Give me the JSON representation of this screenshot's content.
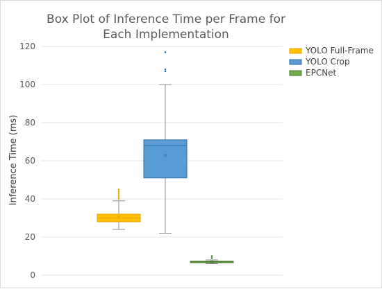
{
  "chart_data": {
    "type": "box",
    "title_lines": [
      "Box Plot of Inference Time per Frame for",
      "Each Implementation"
    ],
    "ylabel": "Inference Time (ms)",
    "xlabel": "",
    "ylim": [
      0,
      120
    ],
    "yticks": [
      "0",
      "20",
      "40",
      "60",
      "80",
      "100",
      "120"
    ],
    "grid": true,
    "legend_position": "top-right",
    "series": [
      {
        "name": "YOLO Full-Frame",
        "fill": "#ffc000",
        "stroke": "#e6a800",
        "min": 24,
        "q1": 28,
        "median": 30,
        "q3": 32,
        "max": 39,
        "mean": 30.5,
        "outliers": [
          40,
          41,
          42,
          43,
          44,
          45
        ]
      },
      {
        "name": "YOLO Crop",
        "fill": "#5b9bd5",
        "stroke": "#2e6da4",
        "min": 22,
        "q1": 51,
        "median": 68,
        "q3": 71,
        "max": 100,
        "mean": 63,
        "outliers": [
          107,
          108,
          117
        ]
      },
      {
        "name": "EPCNet",
        "fill": "#70ad47",
        "stroke": "#4b7a2f",
        "min": 6,
        "q1": 6.5,
        "median": 7,
        "q3": 7.3,
        "max": 8,
        "mean": 7,
        "outliers": [
          9,
          10
        ]
      }
    ]
  }
}
